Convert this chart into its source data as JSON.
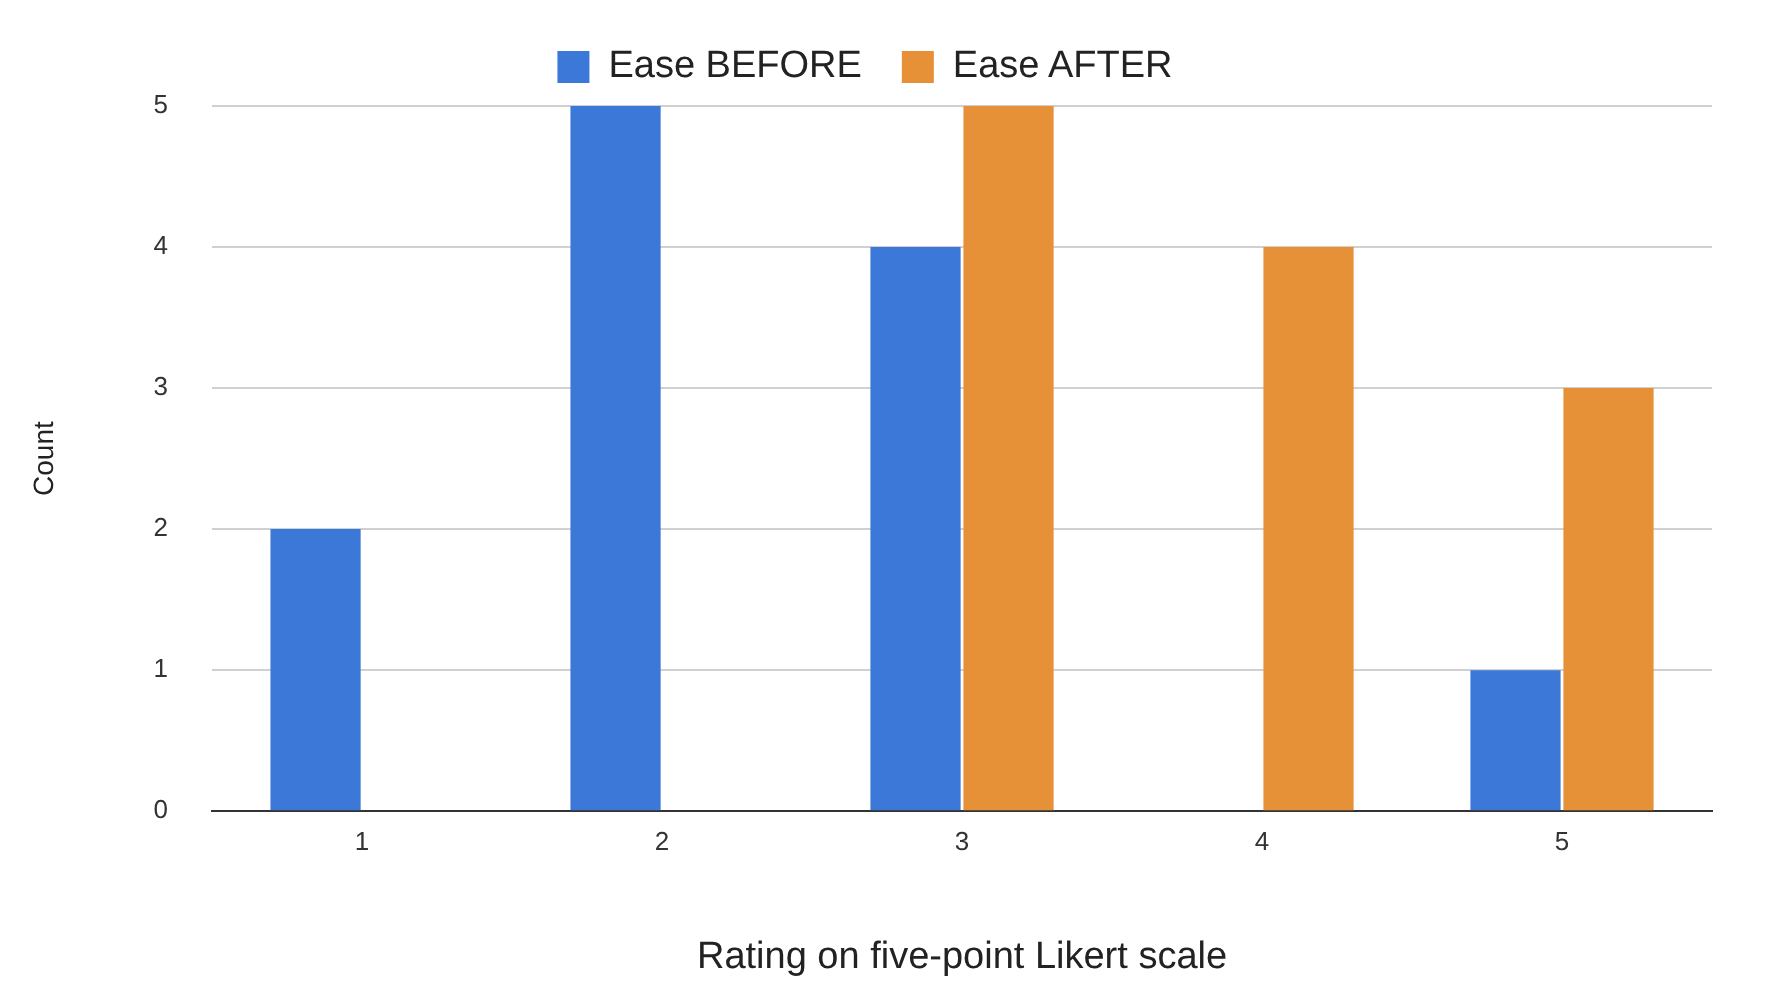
{
  "chart_data": {
    "type": "bar",
    "xlabel": "Rating on five-point Likert scale",
    "ylabel": "Count",
    "categories": [
      "1",
      "2",
      "3",
      "4",
      "5"
    ],
    "series": [
      {
        "name": "Ease BEFORE",
        "color": "#3c78d8",
        "values": [
          2,
          5,
          4,
          0,
          1
        ]
      },
      {
        "name": "Ease AFTER",
        "color": "#e69138",
        "values": [
          0,
          0,
          5,
          4,
          3
        ]
      }
    ],
    "ylim": [
      0,
      5
    ],
    "yticks": [
      0,
      1,
      2,
      3,
      4,
      5
    ],
    "grid": "y",
    "legend": "top"
  }
}
